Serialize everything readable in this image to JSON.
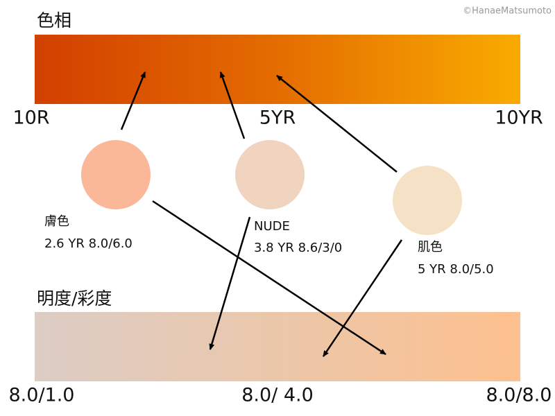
{
  "credit": "©HanaeMatsumoto",
  "hue": {
    "title": "色相",
    "labels": [
      "10R",
      "5YR",
      "10YR"
    ]
  },
  "swatches": [
    {
      "name": "膚色",
      "code": "2.6 YR 8.0/6.0"
    },
    {
      "name": "NUDE",
      "code": "3.8 YR 8.6/3/0"
    },
    {
      "name": "肌色",
      "code": "5 YR 8.0/5.0"
    }
  ],
  "value_chroma": {
    "title": "明度/彩度",
    "labels": [
      "8.0/1.0",
      "8.0/ 4.0",
      "8.0/8.0"
    ]
  }
}
